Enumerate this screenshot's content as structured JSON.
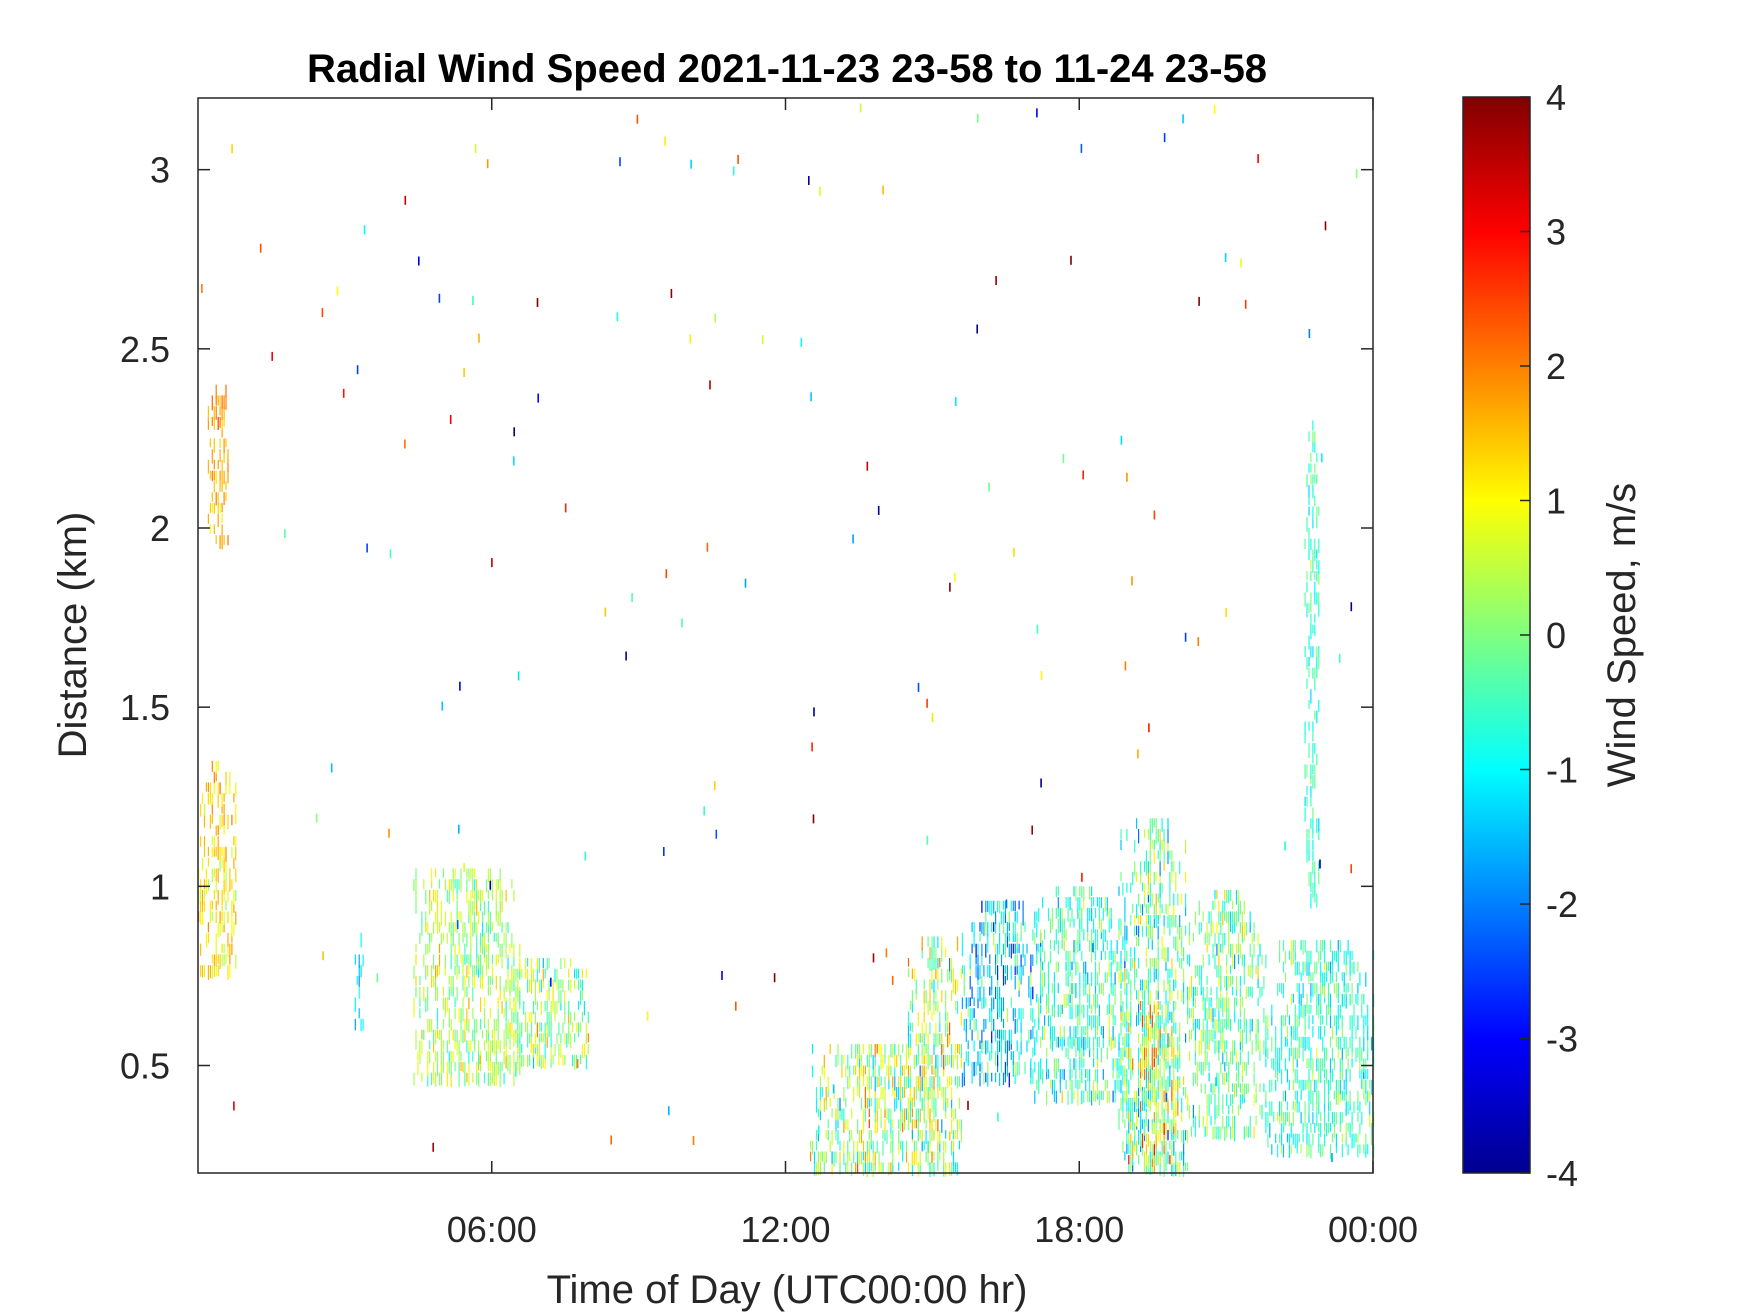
{
  "chart_data": {
    "type": "heatmap",
    "title": "Radial Wind Speed 2021-11-23 23-58 to 11-24 23-58",
    "xlabel": "Time of Day (UTC00:00 hr)",
    "ylabel": "Distance (km)",
    "xlim": [
      0,
      24
    ],
    "ylim": [
      0.2,
      3.2
    ],
    "x_ticks": [
      {
        "value": 6,
        "label": "06:00"
      },
      {
        "value": 12,
        "label": "12:00"
      },
      {
        "value": 18,
        "label": "18:00"
      },
      {
        "value": 24,
        "label": "00:00"
      }
    ],
    "y_ticks": [
      {
        "value": 0.5,
        "label": "0.5"
      },
      {
        "value": 1,
        "label": "1"
      },
      {
        "value": 1.5,
        "label": "1.5"
      },
      {
        "value": 2,
        "label": "2"
      },
      {
        "value": 2.5,
        "label": "2.5"
      },
      {
        "value": 3,
        "label": "3"
      }
    ],
    "colorbar": {
      "label": "Wind Speed, m/s",
      "colormap": "jet",
      "clim": [
        -4,
        4
      ],
      "ticks": [
        "4",
        "3",
        "2",
        "1",
        "0",
        "-1",
        "-2",
        "-3",
        "-4"
      ]
    },
    "data_regions": [
      {
        "t_start": 0.0,
        "t_end": 0.8,
        "d_min": 0.75,
        "d_max": 1.35,
        "mean_speed": 1.2,
        "spread": 0.6
      },
      {
        "t_start": 0.2,
        "t_end": 0.6,
        "d_min": 1.95,
        "d_max": 2.4,
        "mean_speed": 1.6,
        "spread": 0.5
      },
      {
        "t_start": 3.2,
        "t_end": 3.4,
        "d_min": 0.6,
        "d_max": 0.85,
        "mean_speed": -1.2,
        "spread": 0.6
      },
      {
        "t_start": 4.4,
        "t_end": 6.6,
        "d_min": 0.45,
        "d_max": 1.05,
        "mean_speed": 0.3,
        "spread": 0.8
      },
      {
        "t_start": 6.2,
        "t_end": 8.0,
        "d_min": 0.5,
        "d_max": 0.8,
        "mean_speed": 0.2,
        "spread": 0.9
      },
      {
        "t_start": 12.5,
        "t_end": 15.0,
        "d_min": 0.2,
        "d_max": 0.55,
        "mean_speed": 0.2,
        "spread": 1.3
      },
      {
        "t_start": 14.5,
        "t_end": 15.6,
        "d_min": 0.2,
        "d_max": 0.85,
        "mean_speed": 0.3,
        "spread": 1.4
      },
      {
        "t_start": 15.6,
        "t_end": 17.2,
        "d_min": 0.45,
        "d_max": 0.95,
        "mean_speed": -1.3,
        "spread": 1.2
      },
      {
        "t_start": 17.0,
        "t_end": 19.0,
        "d_min": 0.4,
        "d_max": 0.98,
        "mean_speed": -0.5,
        "spread": 1.0
      },
      {
        "t_start": 18.8,
        "t_end": 20.2,
        "d_min": 0.2,
        "d_max": 1.17,
        "mean_speed": -0.3,
        "spread": 1.2
      },
      {
        "t_start": 19.0,
        "t_end": 20.0,
        "d_min": 0.22,
        "d_max": 0.65,
        "mean_speed": 1.0,
        "spread": 1.5
      },
      {
        "t_start": 20.2,
        "t_end": 21.8,
        "d_min": 0.3,
        "d_max": 0.98,
        "mean_speed": -0.2,
        "spread": 1.0
      },
      {
        "t_start": 21.8,
        "t_end": 24.0,
        "d_min": 0.25,
        "d_max": 0.85,
        "mean_speed": -0.5,
        "spread": 0.8
      },
      {
        "t_start": 22.6,
        "t_end": 22.9,
        "d_min": 0.95,
        "d_max": 2.28,
        "mean_speed": -0.5,
        "spread": 0.5
      }
    ]
  }
}
